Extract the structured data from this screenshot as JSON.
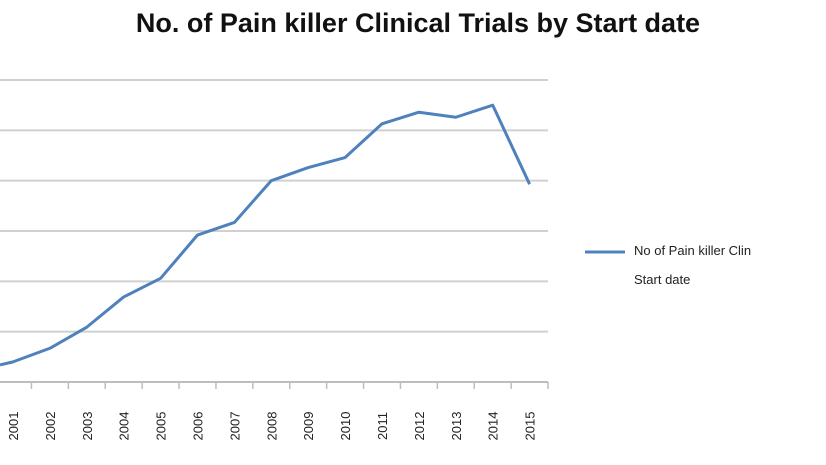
{
  "chart_data": {
    "type": "line",
    "title": "No. of Pain killer Clinical Trials by Start date",
    "categories": [
      "2001",
      "2002",
      "2003",
      "2004",
      "2005",
      "2006",
      "2007",
      "2008",
      "2009",
      "2010",
      "2011",
      "2012",
      "2013",
      "2014",
      "2015"
    ],
    "series": [
      {
        "name": "No of Pain killer Clin Start date",
        "color": "#4f81bd",
        "values": [
          0.4,
          0.67,
          1.09,
          1.69,
          2.06,
          2.92,
          3.17,
          4.0,
          4.26,
          4.46,
          5.13,
          5.36,
          5.26,
          5.5,
          3.93
        ]
      }
    ],
    "ylim": [
      0,
      6
    ],
    "y_tick_labels_visible": false,
    "grid": true,
    "legend_placement": "right",
    "legend_lines": [
      "No of Pain killer Clin",
      "Start date"
    ]
  }
}
